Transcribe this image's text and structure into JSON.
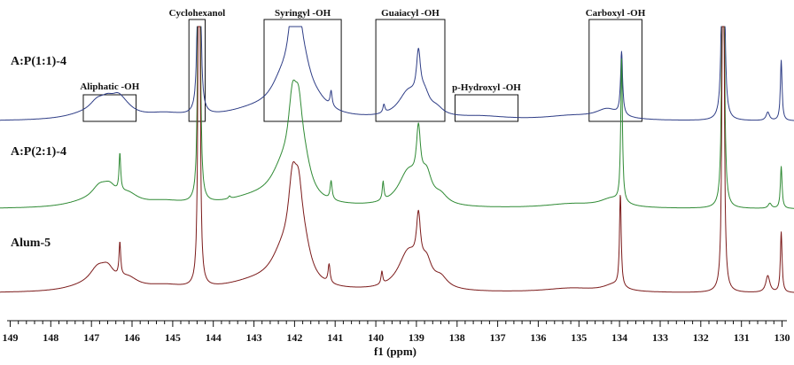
{
  "chart_data": {
    "type": "line",
    "xlabel": "f1 (ppm)",
    "xlim": [
      149.3,
      129.6
    ],
    "x_reversed": true,
    "x_ticks": [
      149,
      148,
      147,
      146,
      145,
      144,
      143,
      142,
      141,
      140,
      139,
      138,
      137,
      136,
      135,
      134,
      133,
      132,
      131,
      130
    ],
    "series": [
      {
        "name": "A:P(1:1)-4",
        "color": "#2e3d86",
        "baseline": 0,
        "peaks": [
          {
            "x": 147.2,
            "h": 0.05,
            "w": 0.6
          },
          {
            "x": 146.85,
            "h": 0.15,
            "w": 0.25
          },
          {
            "x": 146.6,
            "h": 0.12,
            "w": 0.2
          },
          {
            "x": 146.35,
            "h": 0.14,
            "w": 0.2
          },
          {
            "x": 146.2,
            "h": 0.1,
            "w": 0.3
          },
          {
            "x": 145.2,
            "h": 0.06,
            "w": 0.6
          },
          {
            "x": 144.35,
            "h": 8.5,
            "w": 0.02
          },
          {
            "x": 143.0,
            "h": 0.1,
            "w": 0.9
          },
          {
            "x": 142.3,
            "h": 0.35,
            "w": 0.35
          },
          {
            "x": 142.05,
            "h": 0.78,
            "w": 0.13
          },
          {
            "x": 141.9,
            "h": 0.6,
            "w": 0.12
          },
          {
            "x": 141.75,
            "h": 0.3,
            "w": 0.2
          },
          {
            "x": 141.5,
            "h": 0.15,
            "w": 0.4
          },
          {
            "x": 141.1,
            "h": 0.18,
            "w": 0.03
          },
          {
            "x": 139.8,
            "h": 0.1,
            "w": 0.03
          },
          {
            "x": 139.2,
            "h": 0.3,
            "w": 0.3
          },
          {
            "x": 138.95,
            "h": 0.55,
            "w": 0.06
          },
          {
            "x": 138.8,
            "h": 0.2,
            "w": 0.15
          },
          {
            "x": 138.5,
            "h": 0.08,
            "w": 0.2
          },
          {
            "x": 137.4,
            "h": 0.04,
            "w": 0.8
          },
          {
            "x": 135.2,
            "h": 0.05,
            "w": 0.8
          },
          {
            "x": 134.3,
            "h": 0.12,
            "w": 0.35
          },
          {
            "x": 133.95,
            "h": 0.75,
            "w": 0.03
          },
          {
            "x": 131.45,
            "h": 8.5,
            "w": 0.02
          },
          {
            "x": 130.35,
            "h": 0.1,
            "w": 0.05
          },
          {
            "x": 130.02,
            "h": 0.72,
            "w": 0.025
          }
        ]
      },
      {
        "name": "A:P(2:1)-4",
        "color": "#2f8a34",
        "baseline": 0,
        "peaks": [
          {
            "x": 147.2,
            "h": 0.05,
            "w": 0.6
          },
          {
            "x": 146.8,
            "h": 0.18,
            "w": 0.25
          },
          {
            "x": 146.55,
            "h": 0.15,
            "w": 0.2
          },
          {
            "x": 146.3,
            "h": 0.45,
            "w": 0.025
          },
          {
            "x": 146.1,
            "h": 0.12,
            "w": 0.3
          },
          {
            "x": 145.2,
            "h": 0.06,
            "w": 0.6
          },
          {
            "x": 144.35,
            "h": 8.5,
            "w": 0.02
          },
          {
            "x": 143.6,
            "h": 0.03,
            "w": 0.03
          },
          {
            "x": 143.0,
            "h": 0.1,
            "w": 0.9
          },
          {
            "x": 142.3,
            "h": 0.35,
            "w": 0.35
          },
          {
            "x": 142.05,
            "h": 0.85,
            "w": 0.13
          },
          {
            "x": 141.9,
            "h": 0.7,
            "w": 0.12
          },
          {
            "x": 141.75,
            "h": 0.3,
            "w": 0.2
          },
          {
            "x": 141.1,
            "h": 0.22,
            "w": 0.03
          },
          {
            "x": 139.82,
            "h": 0.22,
            "w": 0.025
          },
          {
            "x": 139.2,
            "h": 0.4,
            "w": 0.3
          },
          {
            "x": 138.95,
            "h": 0.65,
            "w": 0.06
          },
          {
            "x": 138.75,
            "h": 0.3,
            "w": 0.15
          },
          {
            "x": 138.4,
            "h": 0.1,
            "w": 0.2
          },
          {
            "x": 135.2,
            "h": 0.05,
            "w": 0.8
          },
          {
            "x": 134.2,
            "h": 0.1,
            "w": 0.35
          },
          {
            "x": 133.95,
            "h": 1.7,
            "w": 0.025
          },
          {
            "x": 131.45,
            "h": 8.5,
            "w": 0.02
          },
          {
            "x": 130.3,
            "h": 0.06,
            "w": 0.05
          },
          {
            "x": 130.02,
            "h": 0.5,
            "w": 0.025
          }
        ]
      },
      {
        "name": "Alum-5",
        "color": "#7b1a1a",
        "baseline": 0,
        "peaks": [
          {
            "x": 147.2,
            "h": 0.05,
            "w": 0.6
          },
          {
            "x": 146.85,
            "h": 0.2,
            "w": 0.25
          },
          {
            "x": 146.6,
            "h": 0.18,
            "w": 0.2
          },
          {
            "x": 146.3,
            "h": 0.4,
            "w": 0.025
          },
          {
            "x": 146.1,
            "h": 0.12,
            "w": 0.3
          },
          {
            "x": 145.2,
            "h": 0.06,
            "w": 0.6
          },
          {
            "x": 144.35,
            "h": 8.5,
            "w": 0.02
          },
          {
            "x": 143.0,
            "h": 0.1,
            "w": 0.9
          },
          {
            "x": 142.3,
            "h": 0.35,
            "w": 0.35
          },
          {
            "x": 142.05,
            "h": 0.88,
            "w": 0.13
          },
          {
            "x": 141.9,
            "h": 0.7,
            "w": 0.12
          },
          {
            "x": 141.75,
            "h": 0.3,
            "w": 0.2
          },
          {
            "x": 141.15,
            "h": 0.22,
            "w": 0.03
          },
          {
            "x": 139.85,
            "h": 0.15,
            "w": 0.025
          },
          {
            "x": 139.2,
            "h": 0.45,
            "w": 0.3
          },
          {
            "x": 138.95,
            "h": 0.6,
            "w": 0.06
          },
          {
            "x": 138.75,
            "h": 0.25,
            "w": 0.15
          },
          {
            "x": 138.4,
            "h": 0.12,
            "w": 0.2
          },
          {
            "x": 135.2,
            "h": 0.05,
            "w": 0.8
          },
          {
            "x": 134.15,
            "h": 0.08,
            "w": 0.3
          },
          {
            "x": 133.98,
            "h": 1.1,
            "w": 0.025
          },
          {
            "x": 131.45,
            "h": 8.5,
            "w": 0.02
          },
          {
            "x": 130.35,
            "h": 0.2,
            "w": 0.06
          },
          {
            "x": 130.02,
            "h": 0.72,
            "w": 0.025
          }
        ]
      }
    ],
    "region_annotations": [
      {
        "label": "Aliphatic -OH",
        "x_from": 147.2,
        "x_to": 145.9
      },
      {
        "label": "Cyclohexanol",
        "x_from": 144.6,
        "x_to": 144.2
      },
      {
        "label": "Syringyl -OH",
        "x_from": 142.75,
        "x_to": 140.85
      },
      {
        "label": "Guaiacyl -OH",
        "x_from": 140.0,
        "x_to": 138.3
      },
      {
        "label": "p-Hydroxyl -OH",
        "x_from": 138.05,
        "x_to": 136.5
      },
      {
        "label": "Carboxyl -OH",
        "x_from": 134.75,
        "x_to": 133.45
      }
    ]
  }
}
